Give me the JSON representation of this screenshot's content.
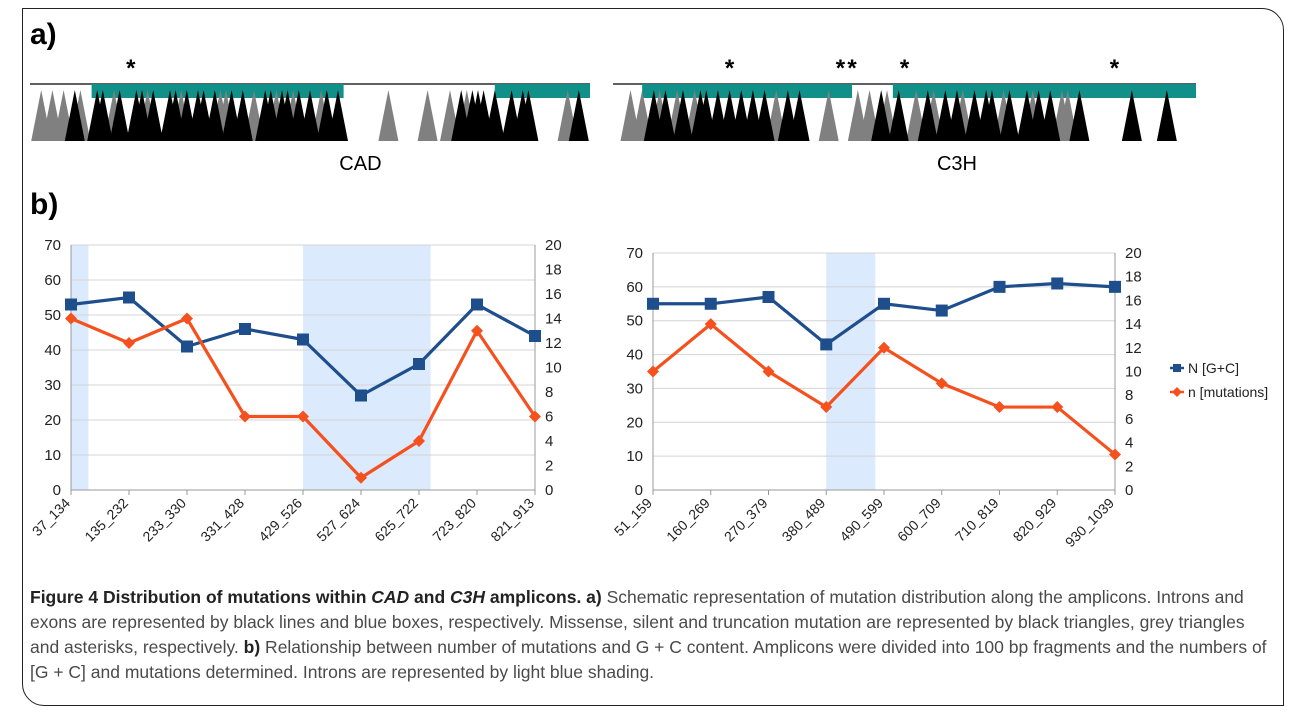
{
  "panel_a": {
    "label": "a)",
    "genes": [
      {
        "name": "CAD",
        "exons": [
          [
            0.11,
            0.56
          ],
          [
            0.83,
            1.0
          ]
        ],
        "asterisks": [
          0.18
        ],
        "missense": [
          0.08,
          0.12,
          0.13,
          0.16,
          0.19,
          0.2,
          0.22,
          0.25,
          0.26,
          0.28,
          0.3,
          0.31,
          0.33,
          0.36,
          0.38,
          0.42,
          0.43,
          0.45,
          0.46,
          0.48,
          0.5,
          0.53,
          0.55,
          0.77,
          0.79,
          0.8,
          0.81,
          0.83,
          0.86,
          0.88,
          0.89,
          0.98
        ],
        "silent": [
          0.02,
          0.04,
          0.06,
          0.09,
          0.15,
          0.21,
          0.27,
          0.34,
          0.35,
          0.4,
          0.44,
          0.47,
          0.52,
          0.64,
          0.71,
          0.75,
          0.78,
          0.96
        ]
      },
      {
        "name": "C3H",
        "exons": [
          [
            0.05,
            0.41
          ],
          [
            0.48,
            1.0
          ]
        ],
        "asterisks": [
          0.2,
          0.39,
          0.41,
          0.5,
          0.86
        ],
        "missense": [
          0.07,
          0.09,
          0.12,
          0.15,
          0.16,
          0.18,
          0.2,
          0.22,
          0.24,
          0.26,
          0.3,
          0.32,
          0.46,
          0.49,
          0.54,
          0.57,
          0.59,
          0.62,
          0.64,
          0.65,
          0.68,
          0.71,
          0.73,
          0.75,
          0.8,
          0.89,
          0.95
        ],
        "silent": [
          0.03,
          0.05,
          0.08,
          0.11,
          0.14,
          0.28,
          0.37,
          0.42,
          0.44,
          0.47,
          0.52,
          0.55,
          0.6,
          0.67,
          0.72,
          0.77,
          0.78
        ]
      }
    ]
  },
  "panel_b_label": "b)",
  "chart_data": [
    {
      "type": "line",
      "categories": [
        "37_134",
        "135_232",
        "233_330",
        "331_428",
        "429_526",
        "527_624",
        "625_722",
        "723_820",
        "821_913"
      ],
      "series": [
        {
          "name": "N [G+C]",
          "axis": "left",
          "color": "#1f4e8c",
          "marker": "square",
          "values": [
            53,
            55,
            41,
            46,
            43,
            27,
            36,
            53,
            44
          ]
        },
        {
          "name": "n [mutations]",
          "axis": "right",
          "color": "#f4511e",
          "marker": "diamond",
          "values": [
            14,
            12,
            14,
            6,
            6,
            1,
            4,
            13,
            6
          ]
        }
      ],
      "ylim_left": [
        0,
        70
      ],
      "yticks_left_step": 10,
      "ylim_right": [
        0,
        20
      ],
      "yticks_right_step": 2,
      "shading": [
        [
          -0.5,
          0.3
        ],
        [
          4.0,
          6.2
        ]
      ],
      "shading_color": "#dbeafc",
      "grid": true,
      "legend": false
    },
    {
      "type": "line",
      "categories": [
        "51_159",
        "160_269",
        "270_379",
        "380_489",
        "490_599",
        "600_709",
        "710_819",
        "820_929",
        "930_1039"
      ],
      "series": [
        {
          "name": "N [G+C]",
          "axis": "left",
          "color": "#1f4e8c",
          "marker": "square",
          "values": [
            55,
            55,
            57,
            43,
            55,
            53,
            60,
            61,
            60
          ]
        },
        {
          "name": "n [mutations]",
          "axis": "right",
          "color": "#f4511e",
          "marker": "diamond",
          "values": [
            10,
            14,
            10,
            7,
            12,
            9,
            7,
            7,
            3
          ]
        }
      ],
      "ylim_left": [
        0,
        70
      ],
      "yticks_left_step": 10,
      "ylim_right": [
        0,
        20
      ],
      "yticks_right_step": 2,
      "shading": [
        [
          3.0,
          3.85
        ]
      ],
      "shading_color": "#dbeafc",
      "grid": true,
      "legend": true,
      "legend_position": "right"
    }
  ],
  "caption": {
    "fig": "Figure 4",
    "title_1": " Distribution of mutations within ",
    "gene_1": "CAD",
    "title_2": " and ",
    "gene_2": "C3H",
    "title_3": " amplicons.",
    "a_label": " a)",
    "a_text": " Schematic representation of mutation distribution along the amplicons. Introns and exons are represented by black lines and blue boxes, respectively. Missense, silent and truncation mutation are represented by black triangles, grey triangles and asterisks, respectively.",
    "b_label": " b)",
    "b_text": " Relationship between number of mutations and G + C content. Amplicons were divided into 100 bp fragments and the numbers of [G + C] and mutations determined. Introns are represented by light blue shading."
  },
  "colors": {
    "exon": "#11908a",
    "missense": "#000000",
    "silent": "#808080"
  }
}
